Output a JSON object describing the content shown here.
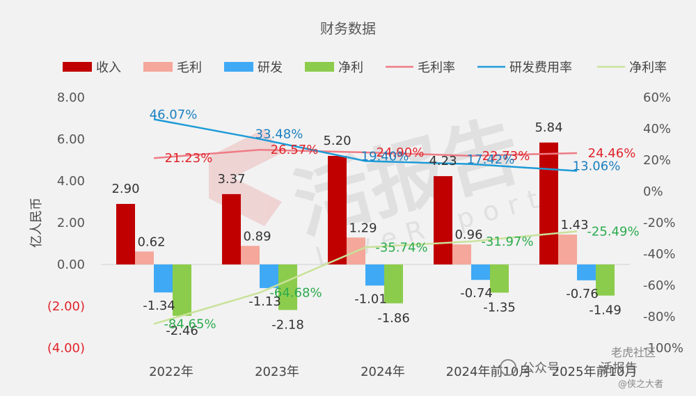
{
  "chart_data": {
    "type": "bar+line",
    "title": "财务数据",
    "ylabel": "亿人民币",
    "categories": [
      "2022年",
      "2023年",
      "2024年",
      "2024年前10月",
      "2025年前10月"
    ],
    "left_axis": {
      "ylim": [
        -4,
        8
      ],
      "ticks": [
        8,
        6,
        4,
        2,
        0,
        -2,
        -4
      ],
      "tick_labels": [
        "8.00",
        "6.00",
        "4.00",
        "2.00",
        "0.00",
        "(2.00)",
        "(4.00)"
      ],
      "negative_color": "#e0242b"
    },
    "right_axis": {
      "ylim": [
        -100,
        60
      ],
      "ticks": [
        60,
        40,
        20,
        0,
        -20,
        -40,
        -60,
        -80,
        -100
      ],
      "tick_labels": [
        "60%",
        "40%",
        "20%",
        "0%",
        "-20%",
        "-40%",
        "-60%",
        "-80%",
        "-100%"
      ]
    },
    "bar_series": [
      {
        "name": "收入",
        "color": "#c00000",
        "values": [
          2.9,
          3.37,
          5.2,
          4.23,
          5.84
        ],
        "labels": [
          "2.90",
          "3.37",
          "5.20",
          "4.23",
          "5.84"
        ]
      },
      {
        "name": "毛利",
        "color": "#f4a79a",
        "values": [
          0.62,
          0.89,
          1.29,
          0.96,
          1.43
        ],
        "labels": [
          "0.62",
          "0.89",
          "1.29",
          "0.96",
          "1.43"
        ]
      },
      {
        "name": "研发",
        "color": "#3fa9f5",
        "values": [
          -1.34,
          -1.13,
          -1.01,
          -0.74,
          -0.76
        ],
        "labels": [
          "-1.34",
          "-1.13",
          "-1.01",
          "-0.74",
          "-0.76"
        ]
      },
      {
        "name": "净利",
        "color": "#8ccc4c",
        "values": [
          -2.46,
          -2.18,
          -1.86,
          -1.35,
          -1.49
        ],
        "labels": [
          "-2.46",
          "-2.18",
          "-1.86",
          "-1.35",
          "-1.49"
        ]
      }
    ],
    "line_series": [
      {
        "name": "毛利率",
        "color": "#ee7b84",
        "label_color": "#e0242b",
        "values": [
          21.23,
          26.57,
          24.9,
          22.73,
          24.46
        ],
        "labels": [
          "21.23%",
          "26.57%",
          "24.90%",
          "22.73%",
          "24.46%"
        ]
      },
      {
        "name": "研发费用率",
        "color": "#1e9bd7",
        "label_color": "#1a7fc0",
        "values": [
          46.07,
          33.48,
          19.4,
          17.42,
          13.06
        ],
        "labels": [
          "46.07%",
          "33.48%",
          "19.40%",
          "17.42%",
          "13.06%"
        ]
      },
      {
        "name": "净利率",
        "color": "#c9e29a",
        "label_color": "#2cab4e",
        "values": [
          -84.65,
          -64.68,
          -35.74,
          -31.97,
          -25.49
        ],
        "labels": [
          "-84.65%",
          "-64.68%",
          "-35.74%",
          "-31.97%",
          "-25.49%"
        ]
      }
    ],
    "legend_position": "top",
    "grid": false
  },
  "watermark": {
    "text": "活报告",
    "latin": "LiveReport"
  },
  "footer": {
    "wechat_label": "公众号",
    "account_name": "活报告",
    "credit": "老虎社区",
    "handle": "@侠之大者"
  }
}
